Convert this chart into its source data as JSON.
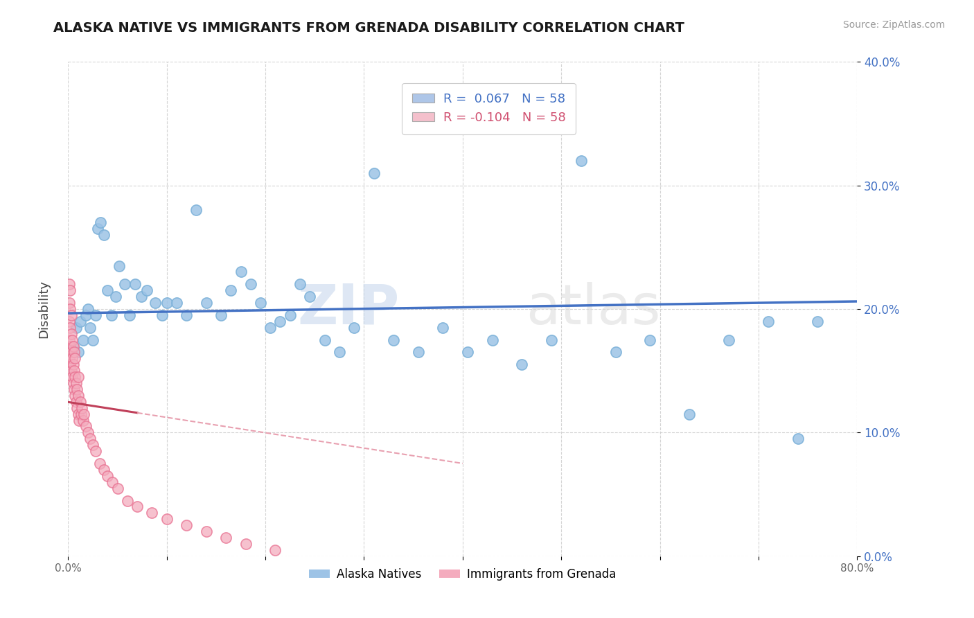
{
  "title": "ALASKA NATIVE VS IMMIGRANTS FROM GRENADA DISABILITY CORRELATION CHART",
  "source": "Source: ZipAtlas.com",
  "ylabel": "Disability",
  "xlim": [
    0,
    0.8
  ],
  "ylim": [
    0,
    0.4
  ],
  "xticks": [
    0.0,
    0.1,
    0.2,
    0.3,
    0.4,
    0.5,
    0.6,
    0.7,
    0.8
  ],
  "yticks": [
    0.0,
    0.1,
    0.2,
    0.3,
    0.4
  ],
  "xtick_labels": [
    "0.0%",
    "",
    "",
    "",
    "",
    "",
    "",
    "",
    "80.0%"
  ],
  "ytick_labels_right": [
    "0.0%",
    "10.0%",
    "20.0%",
    "30.0%",
    "40.0%"
  ],
  "legend_r_blue": "R =  0.067",
  "legend_r_pink": "R = -0.104",
  "legend_n": "N = 58",
  "legend_labels": [
    "Alaska Natives",
    "Immigrants from Grenada"
  ],
  "blue_line_color": "#4472c4",
  "pink_line_solid_color": "#c0405a",
  "pink_line_dash_color": "#e8a0b0",
  "blue_scatter_color": "#9dc3e6",
  "pink_scatter_color": "#f4acbe",
  "blue_scatter_edge": "#7ab0d8",
  "pink_scatter_edge": "#e87090",
  "watermark_zip": "ZIP",
  "watermark_atlas": "atlas",
  "blue_R": 0.067,
  "pink_R": -0.104,
  "blue_scatter_x": [
    0.005,
    0.008,
    0.01,
    0.012,
    0.015,
    0.018,
    0.02,
    0.022,
    0.025,
    0.028,
    0.03,
    0.033,
    0.036,
    0.04,
    0.044,
    0.048,
    0.052,
    0.057,
    0.062,
    0.068,
    0.074,
    0.08,
    0.088,
    0.095,
    0.1,
    0.11,
    0.12,
    0.13,
    0.14,
    0.155,
    0.165,
    0.175,
    0.185,
    0.195,
    0.205,
    0.215,
    0.225,
    0.235,
    0.245,
    0.26,
    0.275,
    0.29,
    0.31,
    0.33,
    0.355,
    0.38,
    0.405,
    0.43,
    0.46,
    0.49,
    0.52,
    0.555,
    0.59,
    0.63,
    0.67,
    0.71,
    0.74,
    0.76
  ],
  "blue_scatter_y": [
    0.17,
    0.185,
    0.165,
    0.19,
    0.175,
    0.195,
    0.2,
    0.185,
    0.175,
    0.195,
    0.265,
    0.27,
    0.26,
    0.215,
    0.195,
    0.21,
    0.235,
    0.22,
    0.195,
    0.22,
    0.21,
    0.215,
    0.205,
    0.195,
    0.205,
    0.205,
    0.195,
    0.28,
    0.205,
    0.195,
    0.215,
    0.23,
    0.22,
    0.205,
    0.185,
    0.19,
    0.195,
    0.22,
    0.21,
    0.175,
    0.165,
    0.185,
    0.31,
    0.175,
    0.165,
    0.185,
    0.165,
    0.175,
    0.155,
    0.175,
    0.32,
    0.165,
    0.175,
    0.115,
    0.175,
    0.19,
    0.095,
    0.19
  ],
  "pink_scatter_x": [
    0.001,
    0.001,
    0.001,
    0.001,
    0.001,
    0.002,
    0.002,
    0.002,
    0.002,
    0.002,
    0.003,
    0.003,
    0.003,
    0.003,
    0.004,
    0.004,
    0.004,
    0.005,
    0.005,
    0.005,
    0.006,
    0.006,
    0.006,
    0.007,
    0.007,
    0.007,
    0.008,
    0.008,
    0.009,
    0.009,
    0.01,
    0.01,
    0.01,
    0.011,
    0.012,
    0.013,
    0.014,
    0.015,
    0.016,
    0.018,
    0.02,
    0.022,
    0.025,
    0.028,
    0.032,
    0.036,
    0.04,
    0.045,
    0.05,
    0.06,
    0.07,
    0.085,
    0.1,
    0.12,
    0.14,
    0.16,
    0.18,
    0.21
  ],
  "pink_scatter_y": [
    0.16,
    0.175,
    0.19,
    0.205,
    0.22,
    0.155,
    0.17,
    0.185,
    0.2,
    0.215,
    0.15,
    0.165,
    0.18,
    0.195,
    0.145,
    0.16,
    0.175,
    0.14,
    0.155,
    0.17,
    0.135,
    0.15,
    0.165,
    0.13,
    0.145,
    0.16,
    0.125,
    0.14,
    0.12,
    0.135,
    0.115,
    0.13,
    0.145,
    0.11,
    0.125,
    0.115,
    0.12,
    0.11,
    0.115,
    0.105,
    0.1,
    0.095,
    0.09,
    0.085,
    0.075,
    0.07,
    0.065,
    0.06,
    0.055,
    0.045,
    0.04,
    0.035,
    0.03,
    0.025,
    0.02,
    0.015,
    0.01,
    0.005
  ],
  "background_color": "#ffffff",
  "grid_color": "#d0d0d0"
}
